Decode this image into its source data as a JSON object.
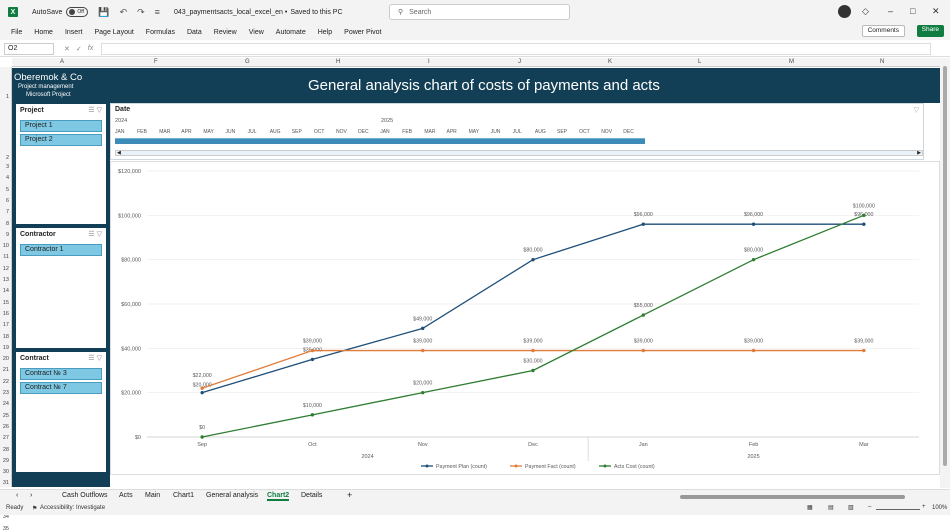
{
  "app": {
    "autosave_label": "AutoSave",
    "autosave_state": "Off",
    "filename": "043_paymentsacts_local_excel_en",
    "saved_status": "Saved to this PC",
    "search_placeholder": "Search"
  },
  "menu": [
    "File",
    "Home",
    "Insert",
    "Page Layout",
    "Formulas",
    "Data",
    "Review",
    "View",
    "Automate",
    "Help",
    "Power Pivot"
  ],
  "buttons": {
    "comments": "Comments",
    "share": "Share"
  },
  "formula_bar": {
    "name_box": "O2",
    "fx": "fx"
  },
  "columns": [
    "A",
    "F",
    "G",
    "H",
    "I",
    "J",
    "K",
    "L",
    "M",
    "N"
  ],
  "rows": [
    "1",
    "2",
    "3",
    "4",
    "5",
    "6",
    "7",
    "8",
    "9",
    "10",
    "11",
    "12",
    "13",
    "14",
    "15",
    "16",
    "17",
    "18",
    "19",
    "20",
    "21",
    "22",
    "23",
    "24",
    "25",
    "26",
    "27",
    "28",
    "29",
    "30",
    "31",
    "32",
    "33",
    "34",
    "35"
  ],
  "banner": {
    "company": "Oberemok & Co",
    "sub1": "Project management",
    "sub2": "Microsoft Project",
    "title": "General analysis chart of costs of payments and acts"
  },
  "slicers": [
    {
      "title": "Project",
      "items": [
        "Project 1",
        "Project 2"
      ]
    },
    {
      "title": "Contractor",
      "items": [
        "Contractor 1"
      ]
    },
    {
      "title": "Contract",
      "items": [
        "Contract № 3",
        "Contract № 7"
      ]
    }
  ],
  "timeline": {
    "title": "Date",
    "years": [
      "2024",
      "2025"
    ],
    "months": [
      "JAN",
      "FEB",
      "MAR",
      "APR",
      "MAY",
      "JUN",
      "JUL",
      "AUG",
      "SEP",
      "OCT",
      "NOV",
      "DEC",
      "JAN",
      "FEB",
      "MAR",
      "APR",
      "MAY",
      "JUN",
      "JUL",
      "AUG",
      "SEP",
      "OCT",
      "NOV",
      "DEC"
    ]
  },
  "chart_data": {
    "type": "line",
    "categories": [
      "Sep",
      "Oct",
      "Nov",
      "Dec",
      "Jan",
      "Feb",
      "Mar"
    ],
    "year_groups": [
      {
        "label": "2024",
        "span": [
          0,
          3
        ]
      },
      {
        "label": "2025",
        "span": [
          4,
          6
        ]
      }
    ],
    "ylim": [
      0,
      120000
    ],
    "yticks": [
      "$0",
      "$20,000",
      "$40,000",
      "$60,000",
      "$80,000",
      "$100,000",
      "$120,000"
    ],
    "series": [
      {
        "name": "Payment Plan (count)",
        "color": "#1f4e79",
        "values": [
          20000,
          35000,
          49000,
          80000,
          96000,
          96000,
          96000
        ],
        "labels": [
          "$20,000",
          "$35,000",
          "$49,000",
          "$80,000",
          "$96,000",
          "$96,000",
          "$96,000"
        ]
      },
      {
        "name": "Payment Fact (count)",
        "color": "#e07b39",
        "values": [
          22000,
          39000,
          39000,
          39000,
          39000,
          39000,
          39000
        ],
        "labels": [
          "$22,000",
          "$39,000",
          "$39,000",
          "$39,000",
          "$39,000",
          "$39,000",
          "$39,000"
        ]
      },
      {
        "name": "Acts Cost (count)",
        "color": "#2e7d32",
        "values": [
          0,
          10000,
          20000,
          30000,
          55000,
          80000,
          100000
        ],
        "labels": [
          "$0",
          "$10,000",
          "$20,000",
          "$30,000",
          "$55,000",
          "$80,000",
          "$100,000"
        ]
      }
    ],
    "legend": "bottom"
  },
  "sheets": [
    "Cash Outflows",
    "Acts",
    "Main",
    "Chart1",
    "General analysis",
    "Chart2",
    "Details"
  ],
  "active_sheet": "Chart2",
  "status": {
    "ready": "Ready",
    "accessibility": "Accessibility: Investigate",
    "zoom": "100%"
  }
}
